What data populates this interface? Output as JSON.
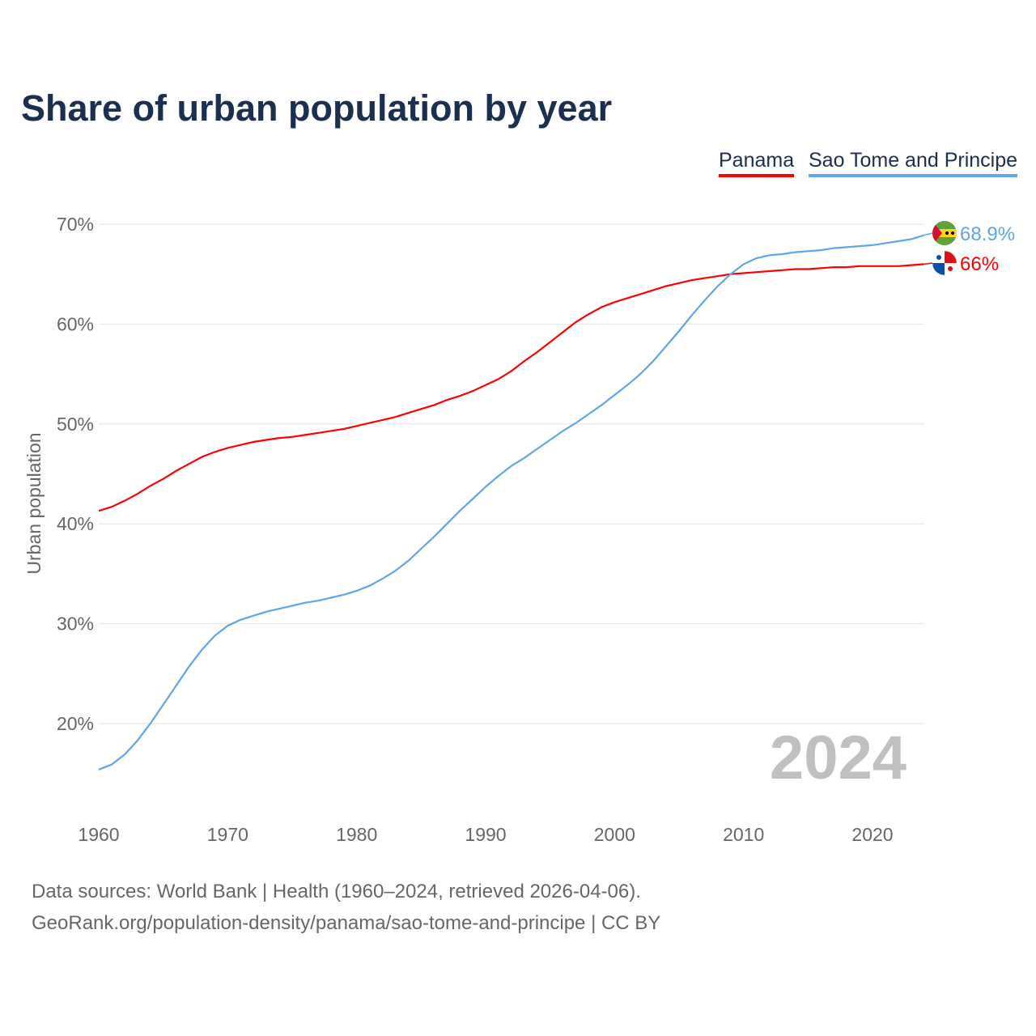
{
  "chart_data": {
    "type": "line",
    "title": "Share of urban population by year",
    "xlabel": "",
    "ylabel": "Urban population",
    "xlim": [
      1960,
      2024
    ],
    "ylim": [
      13,
      72
    ],
    "x_ticks": [
      1960,
      1970,
      1980,
      1990,
      2000,
      2010,
      2020
    ],
    "y_ticks": [
      20,
      30,
      40,
      50,
      60,
      70
    ],
    "y_tick_labels": [
      "20%",
      "30%",
      "40%",
      "50%",
      "60%",
      "70%"
    ],
    "x_tick_labels": [
      "1960",
      "1970",
      "1980",
      "1990",
      "2000",
      "2010",
      "2020"
    ],
    "grid": true,
    "legend_position": "top-right",
    "year_label": "2024",
    "x": [
      1960,
      1961,
      1962,
      1963,
      1964,
      1965,
      1966,
      1967,
      1968,
      1969,
      1970,
      1971,
      1972,
      1973,
      1974,
      1975,
      1976,
      1977,
      1978,
      1979,
      1980,
      1981,
      1982,
      1983,
      1984,
      1985,
      1986,
      1987,
      1988,
      1989,
      1990,
      1991,
      1992,
      1993,
      1994,
      1995,
      1996,
      1997,
      1998,
      1999,
      2000,
      2001,
      2002,
      2003,
      2004,
      2005,
      2006,
      2007,
      2008,
      2009,
      2010,
      2011,
      2012,
      2013,
      2014,
      2015,
      2016,
      2017,
      2018,
      2019,
      2020,
      2021,
      2022,
      2023,
      2024
    ],
    "series": [
      {
        "name": "Panama",
        "color": "#ff0000",
        "end_label": "66%",
        "values": [
          41.3,
          41.7,
          42.3,
          43.0,
          43.8,
          44.5,
          45.3,
          46.0,
          46.7,
          47.2,
          47.6,
          47.9,
          48.2,
          48.4,
          48.6,
          48.7,
          48.9,
          49.1,
          49.3,
          49.5,
          49.8,
          50.1,
          50.4,
          50.7,
          51.1,
          51.5,
          51.9,
          52.4,
          52.8,
          53.3,
          53.9,
          54.5,
          55.3,
          56.3,
          57.2,
          58.2,
          59.2,
          60.2,
          61.0,
          61.7,
          62.2,
          62.6,
          63.0,
          63.4,
          63.8,
          64.1,
          64.4,
          64.6,
          64.8,
          65.0,
          65.1,
          65.2,
          65.3,
          65.4,
          65.5,
          65.5,
          65.6,
          65.7,
          65.7,
          65.8,
          65.8,
          65.8,
          65.8,
          65.9,
          66.0
        ]
      },
      {
        "name": "Sao Tome and Principe",
        "color": "#5ea6ea",
        "end_label": "68.9%",
        "values": [
          15.4,
          15.9,
          16.9,
          18.3,
          20.0,
          21.9,
          23.8,
          25.7,
          27.4,
          28.8,
          29.8,
          30.4,
          30.8,
          31.2,
          31.5,
          31.8,
          32.1,
          32.3,
          32.6,
          32.9,
          33.3,
          33.8,
          34.5,
          35.3,
          36.3,
          37.5,
          38.7,
          40.0,
          41.3,
          42.5,
          43.7,
          44.8,
          45.8,
          46.6,
          47.5,
          48.4,
          49.3,
          50.1,
          51.0,
          51.9,
          52.9,
          53.9,
          55.0,
          56.3,
          57.8,
          59.3,
          60.9,
          62.4,
          63.8,
          65.0,
          66.0,
          66.6,
          66.9,
          67.0,
          67.2,
          67.3,
          67.4,
          67.6,
          67.7,
          67.8,
          67.9,
          68.1,
          68.3,
          68.5,
          68.9
        ]
      }
    ]
  },
  "footer": {
    "line1": "Data sources: World Bank | Health (1960–2024, retrieved 2026-04-06).",
    "line2": "GeoRank.org/population-density/panama/sao-tome-and-principe | CC BY"
  }
}
